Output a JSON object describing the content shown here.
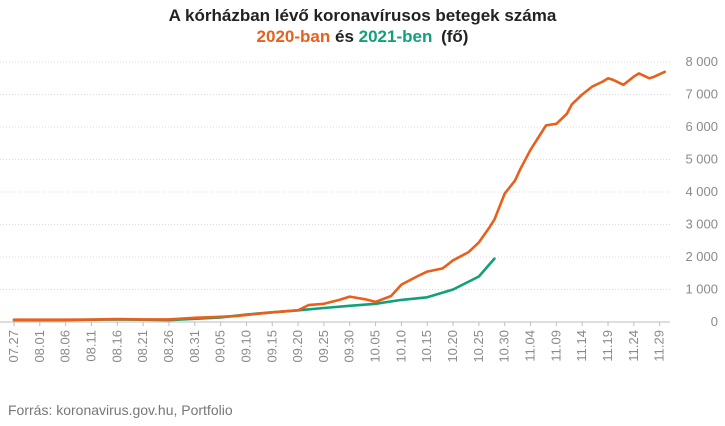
{
  "title": {
    "line1": "A kórházban lévő koronavírusos betegek száma",
    "year2020": "2020-ban",
    "connector": "és",
    "year2021": "2021-ben",
    "unit": "(fő)"
  },
  "source": "Forrás: koronavirus.gov.hu, Portfolio",
  "colors": {
    "s2020": "#e8601c",
    "s2021": "#12a07a",
    "grid": "#d9d9d9",
    "axis": "#8a8a8a"
  },
  "chart_data": {
    "type": "line",
    "title": "A kórházban lévő koronavírusos betegek száma",
    "ylabel": "",
    "xlabel": "",
    "ylim": [
      0,
      8000
    ],
    "y_ticks": [
      0,
      1000,
      2000,
      3000,
      4000,
      5000,
      6000,
      7000,
      8000
    ],
    "y_tick_labels": [
      "0",
      "1 000",
      "2 000",
      "3 000",
      "4 000",
      "5 000",
      "6 000",
      "7 000",
      "8 000"
    ],
    "x_tick_labels": [
      "07.27",
      "08.01",
      "08.06",
      "08.11",
      "08.16",
      "08.21",
      "08.26",
      "08.31",
      "09.05",
      "09.10",
      "09.15",
      "09.20",
      "09.25",
      "09.30",
      "10.05",
      "10.10",
      "10.15",
      "10.20",
      "10.25",
      "10.30",
      "11.04",
      "11.09",
      "11.14",
      "11.19",
      "11.24",
      "11.29"
    ],
    "grid": true,
    "legend": "in title",
    "series": [
      {
        "name": "2020-ban",
        "color": "#e8601c",
        "x": [
          "07.27",
          "08.01",
          "08.06",
          "08.11",
          "08.16",
          "08.21",
          "08.26",
          "08.31",
          "09.05",
          "09.08",
          "09.10",
          "09.15",
          "09.20",
          "09.22",
          "09.25",
          "09.28",
          "09.30",
          "10.03",
          "10.05",
          "10.08",
          "10.10",
          "10.13",
          "10.15",
          "10.18",
          "10.20",
          "10.23",
          "10.25",
          "10.27",
          "10.28",
          "10.30",
          "11.01",
          "11.02",
          "11.04",
          "11.06",
          "11.07",
          "11.09",
          "11.11",
          "11.12",
          "11.14",
          "11.16",
          "11.18",
          "11.19",
          "11.20",
          "11.22",
          "11.24",
          "11.25",
          "11.27",
          "11.28",
          "11.30"
        ],
        "y": [
          70,
          70,
          70,
          75,
          90,
          80,
          80,
          130,
          160,
          180,
          220,
          300,
          360,
          520,
          560,
          680,
          780,
          700,
          620,
          800,
          1150,
          1400,
          1550,
          1650,
          1900,
          2150,
          2450,
          2900,
          3150,
          3950,
          4350,
          4700,
          5300,
          5800,
          6050,
          6100,
          6400,
          6700,
          7000,
          7250,
          7400,
          7500,
          7450,
          7300,
          7550,
          7650,
          7500,
          7550,
          7700
        ]
      },
      {
        "name": "2021-ben",
        "color": "#12a07a",
        "x": [
          "07.27",
          "08.01",
          "08.06",
          "08.11",
          "08.16",
          "08.21",
          "08.26",
          "08.31",
          "09.05",
          "09.10",
          "09.15",
          "09.20",
          "09.25",
          "09.30",
          "10.05",
          "10.10",
          "10.15",
          "10.20",
          "10.25",
          "10.28"
        ],
        "y": [
          60,
          60,
          60,
          70,
          80,
          70,
          60,
          100,
          140,
          230,
          300,
          360,
          430,
          500,
          560,
          680,
          760,
          1000,
          1400,
          1950
        ]
      }
    ]
  }
}
